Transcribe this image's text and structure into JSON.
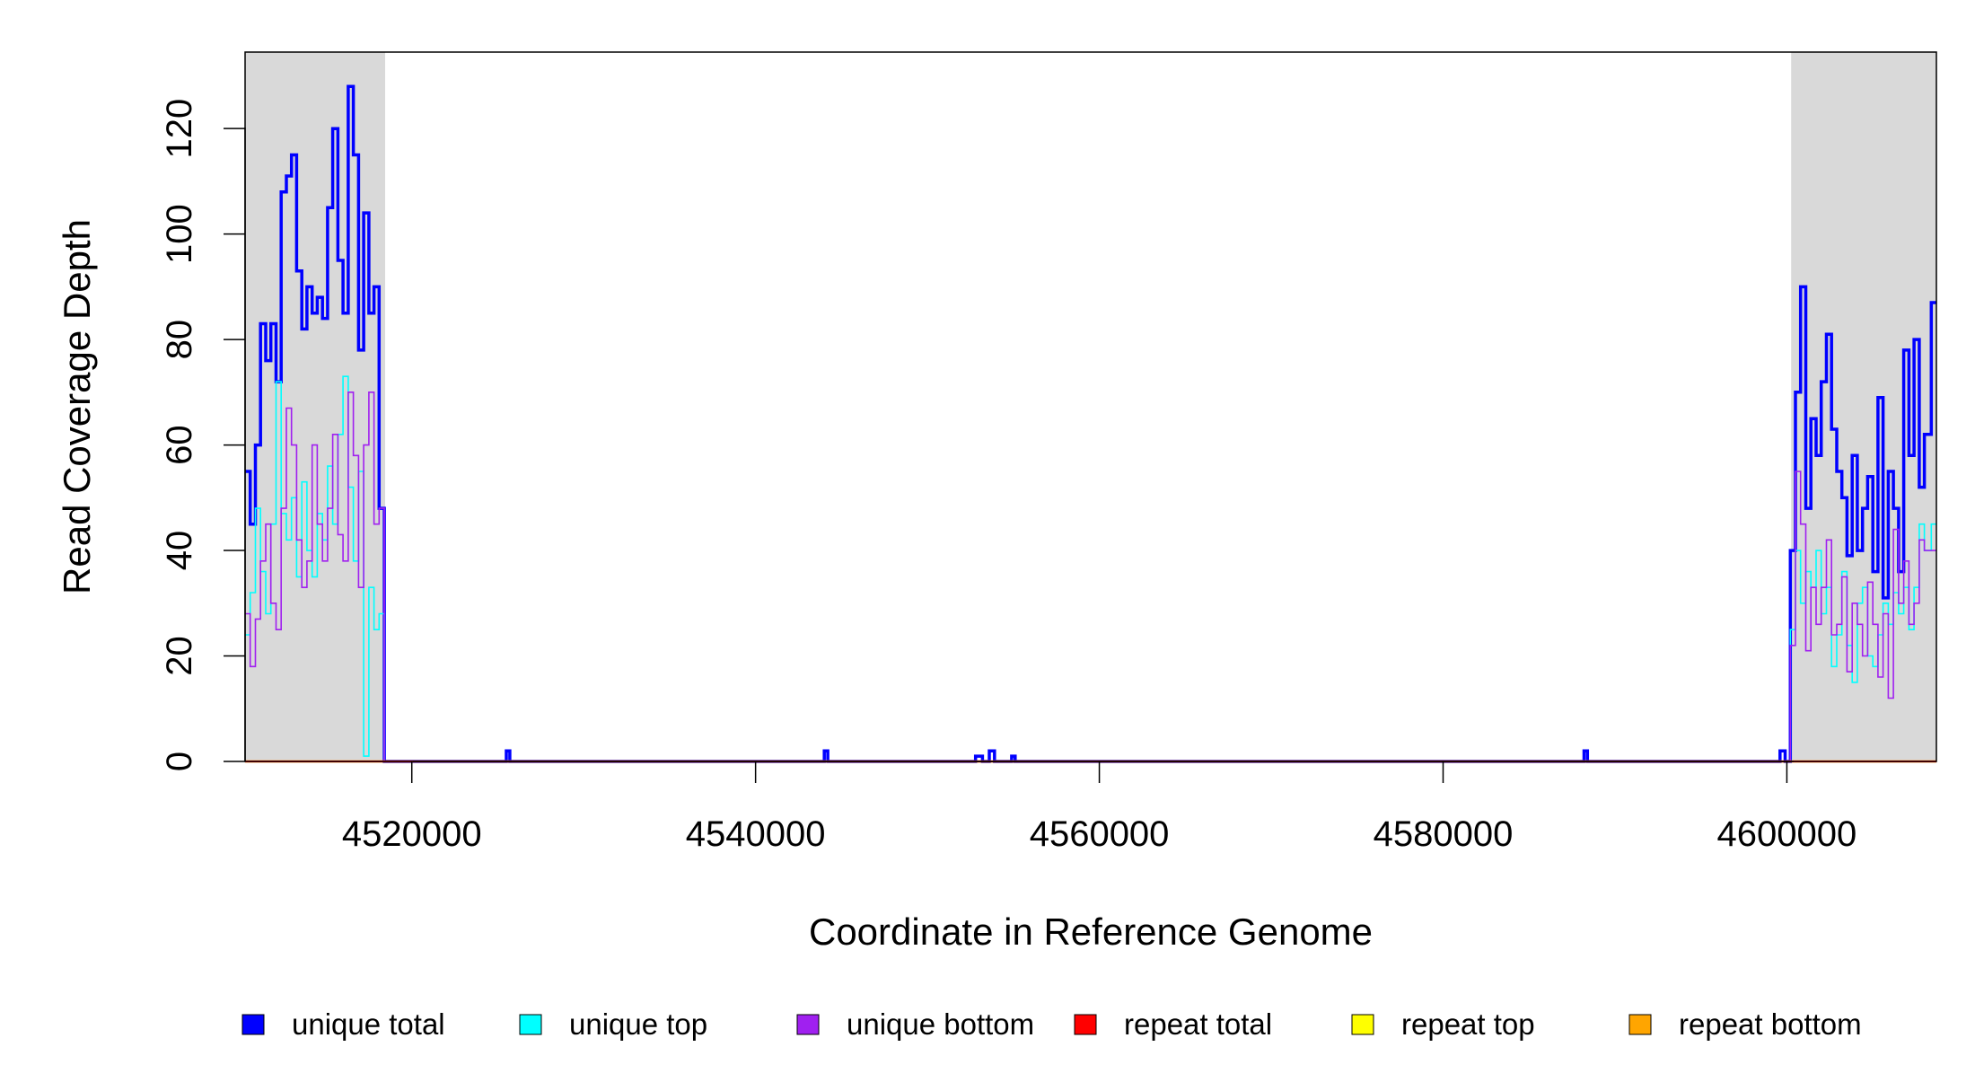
{
  "chart_data": {
    "type": "line",
    "title": "",
    "xlabel": "Coordinate in Reference Genome",
    "ylabel": "Read Coverage Depth",
    "xlim": [
      4510300,
      4608700
    ],
    "ylim": [
      0,
      134.5
    ],
    "x_ticks": [
      4520000,
      4540000,
      4560000,
      4580000,
      4600000
    ],
    "x_tick_labels": [
      "4520000",
      "4540000",
      "4560000",
      "4580000",
      "4600000"
    ],
    "y_ticks": [
      0,
      20,
      40,
      60,
      80,
      100,
      120
    ],
    "y_tick_labels": [
      "0",
      "20",
      "40",
      "60",
      "80",
      "100",
      "120"
    ],
    "grid": false,
    "legend_position": "bottom",
    "shaded_regions": [
      {
        "x_start": 4510300,
        "x_end": 4518450,
        "color": "#d9d9d9"
      },
      {
        "x_start": 4600250,
        "x_end": 4608700,
        "color": "#d9d9d9"
      }
    ],
    "series": [
      {
        "name": "unique total",
        "color": "#0000ff",
        "x": [
          4510300,
          4510600,
          4510900,
          4511200,
          4511500,
          4511800,
          4512100,
          4512400,
          4512700,
          4513000,
          4513300,
          4513600,
          4513900,
          4514200,
          4514500,
          4514800,
          4515100,
          4515400,
          4515700,
          4516000,
          4516300,
          4516600,
          4516900,
          4517200,
          4517500,
          4517800,
          4518100,
          4518400,
          4518600,
          4525500,
          4525700,
          4544000,
          4544200,
          4552800,
          4553200,
          4553600,
          4553900,
          4554900,
          4555100,
          4588200,
          4588400,
          4599600,
          4599900,
          4600200,
          4600500,
          4600800,
          4601100,
          4601400,
          4601700,
          4602000,
          4602300,
          4602600,
          4602900,
          4603200,
          4603500,
          4603800,
          4604100,
          4604400,
          4604700,
          4605000,
          4605300,
          4605600,
          4605900,
          4606200,
          4606500,
          4606800,
          4607100,
          4607400,
          4607700,
          4608000,
          4608400
        ],
        "y": [
          55,
          45,
          60,
          83,
          76,
          83,
          72,
          108,
          111,
          115,
          93,
          82,
          90,
          85,
          88,
          84,
          105,
          120,
          95,
          85,
          128,
          115,
          78,
          104,
          85,
          90,
          48,
          0,
          0,
          2,
          0,
          2,
          0,
          1,
          0,
          2,
          0,
          1,
          0,
          2,
          0,
          2,
          0,
          40,
          70,
          90,
          48,
          65,
          58,
          72,
          81,
          63,
          55,
          50,
          39,
          58,
          40,
          48,
          54,
          36,
          69,
          31,
          55,
          48,
          36,
          78,
          58,
          80,
          52,
          62,
          87
        ]
      },
      {
        "name": "unique top",
        "color": "#00ffff",
        "x": [
          4510300,
          4510600,
          4510900,
          4511200,
          4511500,
          4511800,
          4512100,
          4512400,
          4512700,
          4513000,
          4513300,
          4513600,
          4513900,
          4514200,
          4514500,
          4514800,
          4515100,
          4515400,
          4515700,
          4516000,
          4516300,
          4516600,
          4516900,
          4517200,
          4517500,
          4517800,
          4518100,
          4518400,
          4518600,
          4600200,
          4600500,
          4600800,
          4601100,
          4601400,
          4601700,
          4602000,
          4602300,
          4602600,
          4602900,
          4603200,
          4603500,
          4603800,
          4604100,
          4604400,
          4604700,
          4605000,
          4605300,
          4605600,
          4605900,
          4606200,
          4606500,
          4606800,
          4607100,
          4607400,
          4607700,
          4608000,
          4608400
        ],
        "y": [
          24,
          32,
          48,
          36,
          28,
          45,
          72,
          47,
          42,
          50,
          35,
          53,
          40,
          35,
          47,
          42,
          56,
          45,
          62,
          73,
          52,
          38,
          55,
          1,
          33,
          25,
          28,
          0,
          0,
          25,
          40,
          30,
          36,
          33,
          40,
          28,
          33,
          18,
          24,
          36,
          22,
          15,
          30,
          33,
          20,
          18,
          24,
          30,
          26,
          32,
          28,
          33,
          25,
          33,
          45,
          40,
          45
        ]
      },
      {
        "name": "unique bottom",
        "color": "#a020f0",
        "x": [
          4510300,
          4510600,
          4510900,
          4511200,
          4511500,
          4511800,
          4512100,
          4512400,
          4512700,
          4513000,
          4513300,
          4513600,
          4513900,
          4514200,
          4514500,
          4514800,
          4515100,
          4515400,
          4515700,
          4516000,
          4516300,
          4516600,
          4516900,
          4517200,
          4517500,
          4517800,
          4518100,
          4518400,
          4518600,
          4600200,
          4600500,
          4600800,
          4601100,
          4601400,
          4601700,
          4602000,
          4602300,
          4602600,
          4602900,
          4603200,
          4603500,
          4603800,
          4604100,
          4604400,
          4604700,
          4605000,
          4605300,
          4605600,
          4605900,
          4606200,
          4606500,
          4606800,
          4607100,
          4607400,
          4607700,
          4608000,
          4608400
        ],
        "y": [
          28,
          18,
          27,
          38,
          45,
          30,
          25,
          48,
          67,
          60,
          42,
          33,
          38,
          60,
          45,
          38,
          48,
          62,
          43,
          38,
          70,
          58,
          33,
          60,
          70,
          45,
          48,
          0,
          0,
          22,
          55,
          45,
          21,
          33,
          26,
          33,
          42,
          24,
          26,
          35,
          17,
          30,
          26,
          20,
          34,
          26,
          16,
          28,
          12,
          44,
          30,
          38,
          26,
          30,
          42,
          40,
          40
        ]
      },
      {
        "name": "repeat total",
        "color": "#ff0000",
        "x": [
          4510300,
          4608700
        ],
        "y": [
          0,
          0
        ]
      },
      {
        "name": "repeat top",
        "color": "#ffff00",
        "x": [
          4510300,
          4608700
        ],
        "y": [
          0,
          0
        ]
      },
      {
        "name": "repeat bottom",
        "color": "#ffa500",
        "x": [
          4510300,
          4608700
        ],
        "y": [
          0,
          0
        ]
      }
    ],
    "legend": [
      {
        "label": "unique total",
        "color": "#0000ff"
      },
      {
        "label": "unique top",
        "color": "#00ffff"
      },
      {
        "label": "unique bottom",
        "color": "#a020f0"
      },
      {
        "label": "repeat total",
        "color": "#ff0000"
      },
      {
        "label": "repeat top",
        "color": "#ffff00"
      },
      {
        "label": "repeat bottom",
        "color": "#ffa500"
      }
    ]
  }
}
